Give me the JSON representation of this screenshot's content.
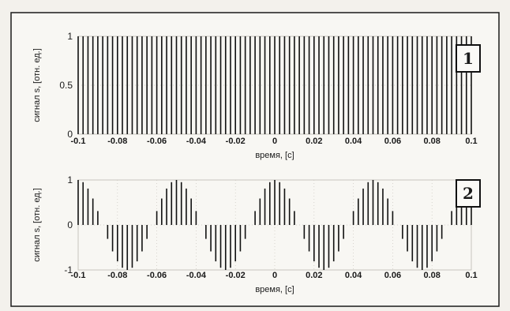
{
  "chart_data": [
    {
      "type": "bar",
      "panel_label": "1",
      "xlabel": "время, [c]",
      "ylabel": "сигнал s, [отн. ед.]",
      "xlim": [
        -0.1,
        0.1
      ],
      "ylim": [
        0,
        1
      ],
      "x_ticks": [
        "-0.1",
        "-0.08",
        "-0.06",
        "-0.04",
        "-0.02",
        "0",
        "0.02",
        "0.04",
        "0.06",
        "0.08",
        "0.1"
      ],
      "y_ticks": [
        "0",
        "0.5",
        "1"
      ],
      "sample_step": 0.0025,
      "description_values": "all samples equal 1 at every time step from -0.1 to 0.1",
      "values": [
        1
      ]
    },
    {
      "type": "bar",
      "panel_label": "2",
      "xlabel": "время, [c]",
      "ylabel": "сигнал s, [отн. ед.]",
      "xlim": [
        -0.1,
        0.1
      ],
      "ylim": [
        -1,
        1
      ],
      "x_ticks": [
        "-0.1",
        "-0.08",
        "-0.06",
        "-0.04",
        "-0.02",
        "0",
        "0.02",
        "0.04",
        "0.06",
        "0.08",
        "0.1"
      ],
      "y_ticks": [
        "-1",
        "0",
        "1"
      ],
      "sample_step": 0.0025,
      "signal": "cos(2*pi*20*t)",
      "frequency_hz": 20
    }
  ]
}
